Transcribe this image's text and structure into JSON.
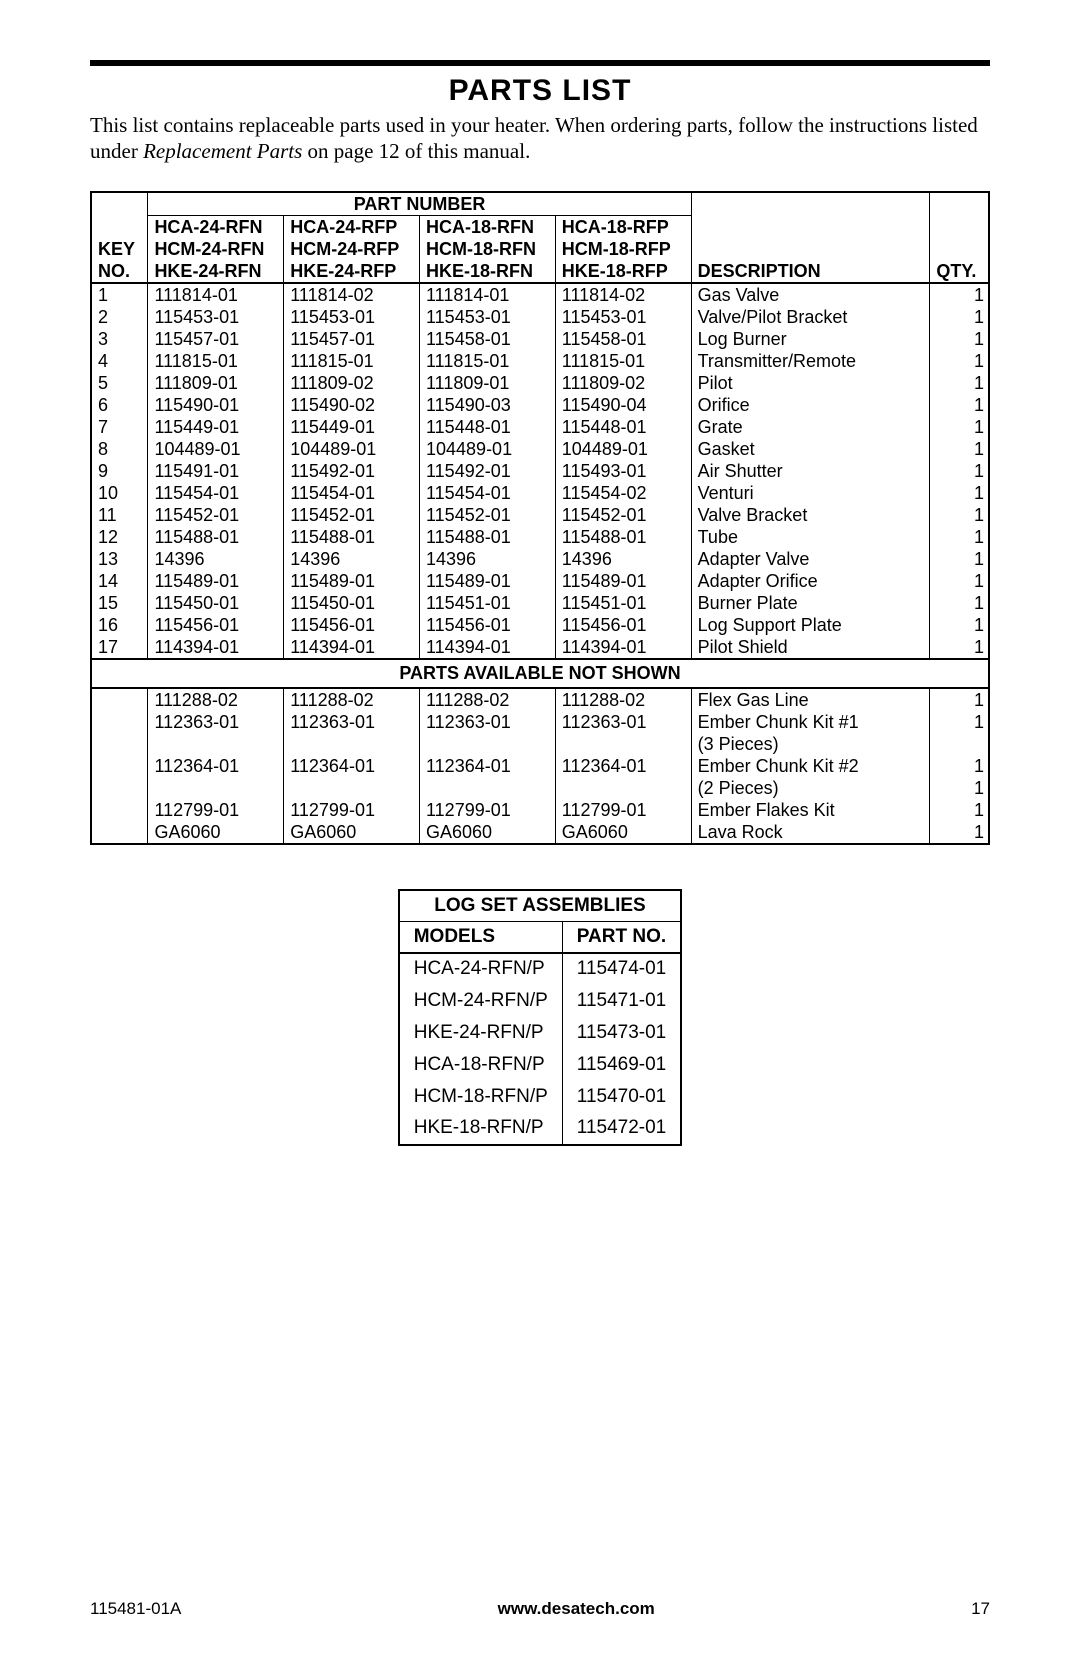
{
  "title": "PARTS LIST",
  "intro_pre": "This list contains replaceable parts used in your heater. When ordering parts, follow the instructions listed under ",
  "intro_italic": "Replacement Parts",
  "intro_post": " on page 12 of this manual.",
  "table": {
    "part_number_label": "PART NUMBER",
    "key_label": "KEY",
    "no_label": "NO.",
    "description_label": "DESCRIPTION",
    "qty_label": "QTY.",
    "model_headers": {
      "row1": [
        "HCA-24-RFN",
        "HCA-24-RFP",
        "HCA-18-RFN",
        "HCA-18-RFP"
      ],
      "row2": [
        "HCM-24-RFN",
        "HCM-24-RFP",
        "HCM-18-RFN",
        "HCM-18-RFP"
      ],
      "row3": [
        "HKE-24-RFN",
        "HKE-24-RFP",
        "HKE-18-RFN",
        "HKE-18-RFP"
      ]
    },
    "rows": [
      {
        "key": "1",
        "p": [
          "111814-01",
          "111814-02",
          "111814-01",
          "111814-02"
        ],
        "desc": "Gas Valve",
        "qty": "1"
      },
      {
        "key": "2",
        "p": [
          "115453-01",
          "115453-01",
          "115453-01",
          "115453-01"
        ],
        "desc": "Valve/Pilot Bracket",
        "qty": "1"
      },
      {
        "key": "3",
        "p": [
          "115457-01",
          "115457-01",
          "115458-01",
          "115458-01"
        ],
        "desc": "Log Burner",
        "qty": "1"
      },
      {
        "key": "4",
        "p": [
          "111815-01",
          "111815-01",
          "111815-01",
          "111815-01"
        ],
        "desc": "Transmitter/Remote",
        "qty": "1"
      },
      {
        "key": "5",
        "p": [
          "111809-01",
          "111809-02",
          "111809-01",
          "111809-02"
        ],
        "desc": "Pilot",
        "qty": "1"
      },
      {
        "key": "6",
        "p": [
          "115490-01",
          "115490-02",
          "115490-03",
          "115490-04"
        ],
        "desc": "Orifice",
        "qty": "1"
      },
      {
        "key": "7",
        "p": [
          "115449-01",
          "115449-01",
          "115448-01",
          "115448-01"
        ],
        "desc": "Grate",
        "qty": "1"
      },
      {
        "key": "8",
        "p": [
          "104489-01",
          "104489-01",
          "104489-01",
          "104489-01"
        ],
        "desc": "Gasket",
        "qty": "1"
      },
      {
        "key": "9",
        "p": [
          "115491-01",
          "115492-01",
          "115492-01",
          "115493-01"
        ],
        "desc": "Air Shutter",
        "qty": "1"
      },
      {
        "key": "10",
        "p": [
          "115454-01",
          "115454-01",
          "115454-01",
          "115454-02"
        ],
        "desc": "Venturi",
        "qty": "1"
      },
      {
        "key": "11",
        "p": [
          "115452-01",
          "115452-01",
          "115452-01",
          "115452-01"
        ],
        "desc": "Valve Bracket",
        "qty": "1"
      },
      {
        "key": "12",
        "p": [
          "115488-01",
          "115488-01",
          "115488-01",
          "115488-01"
        ],
        "desc": "Tube",
        "qty": "1"
      },
      {
        "key": "13",
        "p": [
          "14396",
          "14396",
          "14396",
          "14396"
        ],
        "desc": "Adapter Valve",
        "qty": "1"
      },
      {
        "key": "14",
        "p": [
          "115489-01",
          "115489-01",
          "115489-01",
          "115489-01"
        ],
        "desc": "Adapter Orifice",
        "qty": "1"
      },
      {
        "key": "15",
        "p": [
          "115450-01",
          "115450-01",
          "115451-01",
          "115451-01"
        ],
        "desc": "Burner Plate",
        "qty": "1"
      },
      {
        "key": "16",
        "p": [
          "115456-01",
          "115456-01",
          "115456-01",
          "115456-01"
        ],
        "desc": "Log Support Plate",
        "qty": "1"
      },
      {
        "key": "17",
        "p": [
          "114394-01",
          "114394-01",
          "114394-01",
          "114394-01"
        ],
        "desc": "Pilot Shield",
        "qty": "1"
      }
    ],
    "section_label": "PARTS AVAILABLE NOT SHOWN",
    "rows2": [
      {
        "key": "",
        "p": [
          "111288-02",
          "111288-02",
          "111288-02",
          "111288-02"
        ],
        "desc": "Flex Gas Line",
        "qty": "1"
      },
      {
        "key": "",
        "p": [
          "112363-01",
          "112363-01",
          "112363-01",
          "112363-01"
        ],
        "desc": "Ember Chunk Kit #1",
        "qty": "1"
      },
      {
        "key": "",
        "p": [
          "",
          "",
          "",
          ""
        ],
        "desc": "(3 Pieces)",
        "qty": ""
      },
      {
        "key": "",
        "p": [
          "112364-01",
          "112364-01",
          "112364-01",
          "112364-01"
        ],
        "desc": "Ember Chunk Kit #2",
        "qty": "1"
      },
      {
        "key": "",
        "p": [
          "",
          "",
          "",
          ""
        ],
        "desc": "(2 Pieces)",
        "qty": "1"
      },
      {
        "key": "",
        "p": [
          "112799-01",
          "112799-01",
          "112799-01",
          "112799-01"
        ],
        "desc": "Ember Flakes Kit",
        "qty": "1"
      },
      {
        "key": "",
        "p": [
          "GA6060",
          "GA6060",
          "GA6060",
          "GA6060"
        ],
        "desc": "Lava Rock",
        "qty": "1"
      }
    ]
  },
  "logset": {
    "title": "LOG SET ASSEMBLIES",
    "col1": "MODELS",
    "col2": "PART NO.",
    "rows": [
      [
        "HCA-24-RFN/P",
        "115474-01"
      ],
      [
        "HCM-24-RFN/P",
        "115471-01"
      ],
      [
        "HKE-24-RFN/P",
        "115473-01"
      ],
      [
        "HCA-18-RFN/P",
        "115469-01"
      ],
      [
        "HCM-18-RFN/P",
        "115470-01"
      ],
      [
        "HKE-18-RFN/P",
        "115472-01"
      ]
    ]
  },
  "footer": {
    "doc_no": "115481-01A",
    "url": "www.desatech.com",
    "page_no": "17"
  }
}
